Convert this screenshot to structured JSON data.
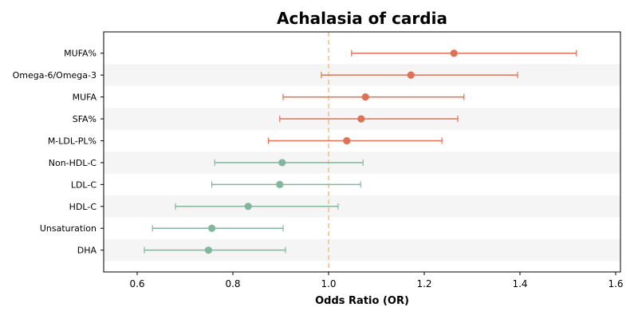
{
  "chart_data": {
    "type": "forest",
    "title": "Achalasia of cardia",
    "xlabel": "Odds Ratio (OR)",
    "ylabel": "",
    "xlim": [
      0.53,
      1.61
    ],
    "xticks": [
      0.6,
      0.8,
      1.0,
      1.2,
      1.4,
      1.6
    ],
    "xtick_labels": [
      "0.6",
      "0.8",
      "1.0",
      "1.2",
      "1.4",
      "1.6"
    ],
    "reference_line": 1.0,
    "reference_color": "#f5c58a",
    "colors": {
      "risk": "#dd7256",
      "protective": "#82b79d",
      "stripe": "#f5f5f5"
    },
    "rows": [
      {
        "label": "MUFA%",
        "or": 1.262,
        "lower": 1.048,
        "upper": 1.518,
        "group": "risk"
      },
      {
        "label": "Omega-6/Omega-3",
        "or": 1.172,
        "lower": 0.985,
        "upper": 1.395,
        "group": "risk"
      },
      {
        "label": "MUFA",
        "or": 1.077,
        "lower": 0.905,
        "upper": 1.283,
        "group": "risk"
      },
      {
        "label": "SFA%",
        "or": 1.068,
        "lower": 0.898,
        "upper": 1.27,
        "group": "risk"
      },
      {
        "label": "M-LDL-PL%",
        "or": 1.038,
        "lower": 0.874,
        "upper": 1.237,
        "group": "risk"
      },
      {
        "label": "Non-HDL-C",
        "or": 0.903,
        "lower": 0.762,
        "upper": 1.072,
        "group": "protective"
      },
      {
        "label": "LDL-C",
        "or": 0.898,
        "lower": 0.756,
        "upper": 1.067,
        "group": "protective"
      },
      {
        "label": "HDL-C",
        "or": 0.832,
        "lower": 0.68,
        "upper": 1.02,
        "group": "protective"
      },
      {
        "label": "Unsaturation",
        "or": 0.756,
        "lower": 0.632,
        "upper": 0.905,
        "group": "protective"
      },
      {
        "label": "DHA",
        "or": 0.749,
        "lower": 0.615,
        "upper": 0.91,
        "group": "protective"
      }
    ]
  }
}
